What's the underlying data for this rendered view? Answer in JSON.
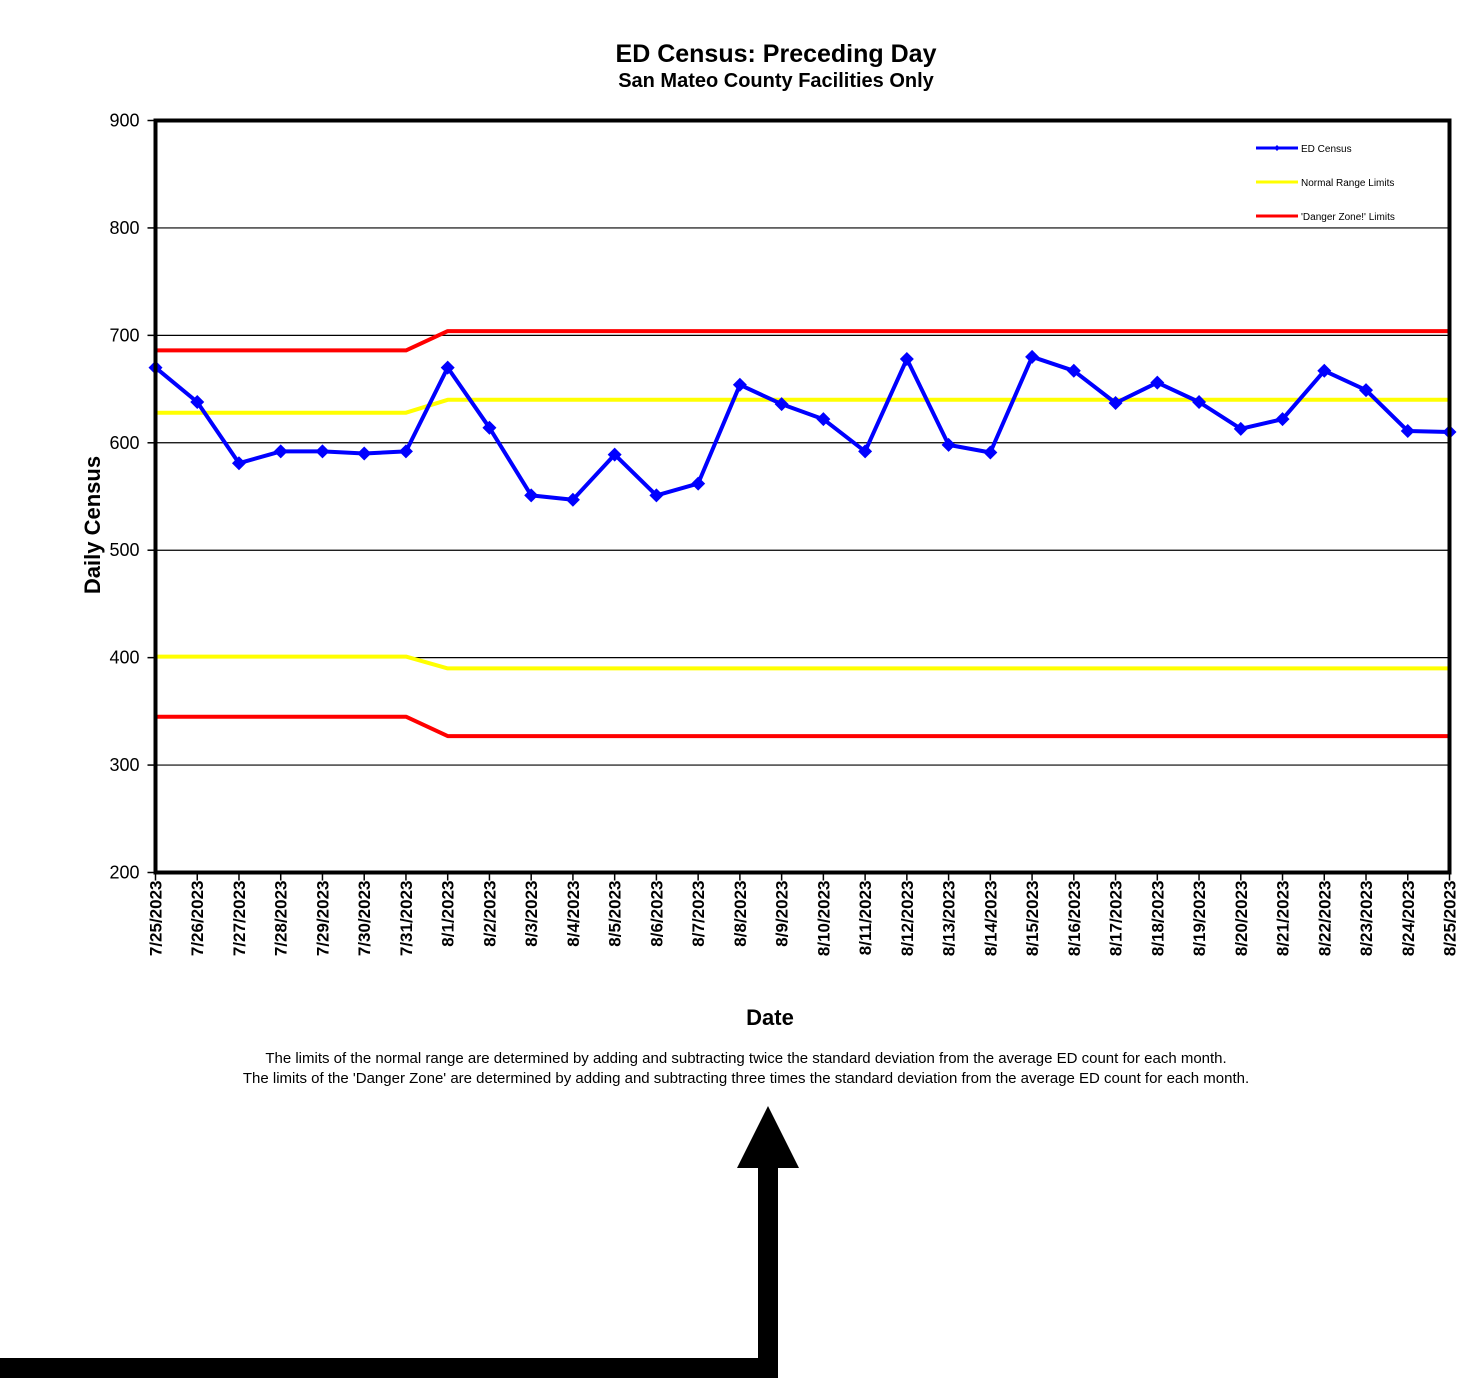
{
  "chart_data": {
    "type": "line",
    "title": "ED Census: Preceding Day",
    "subtitle": "San Mateo County Facilities Only",
    "xlabel": "Date",
    "ylabel": "Daily Census",
    "ylim": [
      200,
      900
    ],
    "yticks": [
      "200",
      "300",
      "400",
      "500",
      "600",
      "700",
      "800",
      "900"
    ],
    "grid": true,
    "legend_position": "top-right",
    "categories": [
      "7/25/2023",
      "7/26/2023",
      "7/27/2023",
      "7/28/2023",
      "7/29/2023",
      "7/30/2023",
      "7/31/2023",
      "8/1/2023",
      "8/2/2023",
      "8/3/2023",
      "8/4/2023",
      "8/5/2023",
      "8/6/2023",
      "8/7/2023",
      "8/8/2023",
      "8/9/2023",
      "8/10/2023",
      "8/11/2023",
      "8/12/2023",
      "8/13/2023",
      "8/14/2023",
      "8/15/2023",
      "8/16/2023",
      "8/17/2023",
      "8/18/2023",
      "8/19/2023",
      "8/20/2023",
      "8/21/2023",
      "8/22/2023",
      "8/23/2023",
      "8/24/2023",
      "8/25/2023"
    ],
    "series": [
      {
        "name": "ED Census",
        "color": "#0000ff",
        "marker": "diamond",
        "values": [
          670,
          638,
          581,
          592,
          592,
          590,
          592,
          670,
          614,
          551,
          547,
          589,
          551,
          562,
          654,
          636,
          622,
          592,
          678,
          598,
          591,
          680,
          667,
          637,
          656,
          638,
          613,
          622,
          667,
          649,
          611,
          610
        ]
      },
      {
        "name": "Normal Range Limits",
        "color": "#ffff00",
        "role": "upper",
        "values": [
          628,
          628,
          628,
          628,
          628,
          628,
          628,
          640,
          640,
          640,
          640,
          640,
          640,
          640,
          640,
          640,
          640,
          640,
          640,
          640,
          640,
          640,
          640,
          640,
          640,
          640,
          640,
          640,
          640,
          640,
          640,
          640
        ]
      },
      {
        "name": "Normal Range Limits",
        "color": "#ffff00",
        "role": "lower",
        "hide_legend": true,
        "values": [
          401,
          401,
          401,
          401,
          401,
          401,
          401,
          390,
          390,
          390,
          390,
          390,
          390,
          390,
          390,
          390,
          390,
          390,
          390,
          390,
          390,
          390,
          390,
          390,
          390,
          390,
          390,
          390,
          390,
          390,
          390,
          390
        ]
      },
      {
        "name": "'Danger Zone!' Limits",
        "color": "#ff0000",
        "role": "upper",
        "values": [
          686,
          686,
          686,
          686,
          686,
          686,
          686,
          704,
          704,
          704,
          704,
          704,
          704,
          704,
          704,
          704,
          704,
          704,
          704,
          704,
          704,
          704,
          704,
          704,
          704,
          704,
          704,
          704,
          704,
          704,
          704,
          704
        ]
      },
      {
        "name": "'Danger Zone!' Limits",
        "color": "#ff0000",
        "role": "lower",
        "hide_legend": true,
        "values": [
          345,
          345,
          345,
          345,
          345,
          345,
          345,
          327,
          327,
          327,
          327,
          327,
          327,
          327,
          327,
          327,
          327,
          327,
          327,
          327,
          327,
          327,
          327,
          327,
          327,
          327,
          327,
          327,
          327,
          327,
          327,
          327
        ]
      }
    ],
    "legend": [
      "ED Census",
      "Normal Range Limits",
      "'Danger Zone!' Limits"
    ],
    "notes": [
      "The limits of the normal range are determined by adding and subtracting twice the standard deviation from the average ED count for each month.",
      "The limits of the 'Danger Zone' are determined by adding and subtracting three times the standard deviation from the average ED count for each month."
    ]
  }
}
